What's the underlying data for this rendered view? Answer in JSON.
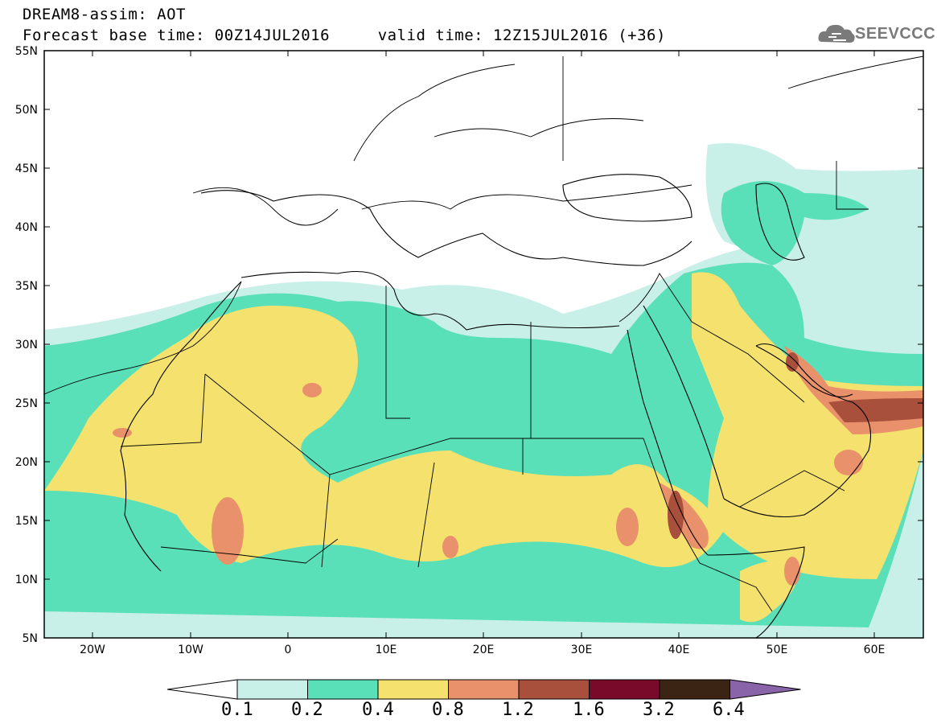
{
  "header": {
    "line1": "DREAM8-assim: AOT",
    "line2": "Forecast base time: 00Z14JUL2016     valid time: 12Z15JUL2016 (+36)",
    "logo_text": "SEEVCCC"
  },
  "axes": {
    "lat_labels": [
      "55N",
      "50N",
      "45N",
      "40N",
      "35N",
      "30N",
      "25N",
      "20N",
      "15N",
      "10N",
      "5N"
    ],
    "lon_labels": [
      "20W",
      "10W",
      "0",
      "10E",
      "20E",
      "30E",
      "40E",
      "50E",
      "60E"
    ]
  },
  "legend": {
    "labels": [
      "0.1",
      "0.2",
      "0.4",
      "0.8",
      "1.2",
      "1.6",
      "3.2",
      "6.4"
    ],
    "colors": [
      "#ffffff",
      "#c8f0e8",
      "#5ae0b8",
      "#f5e16e",
      "#e8916a",
      "#a8503c",
      "#7a0a2a",
      "#3c2414",
      "#8a64a8"
    ]
  },
  "colors": {
    "aot_0_1_0_2": "#c8f0e8",
    "aot_0_2_0_4": "#5ae0b8",
    "aot_0_4_0_8": "#f5e16e",
    "aot_0_8_1_2": "#e8916a",
    "aot_1_2_1_6": "#a8503c"
  }
}
